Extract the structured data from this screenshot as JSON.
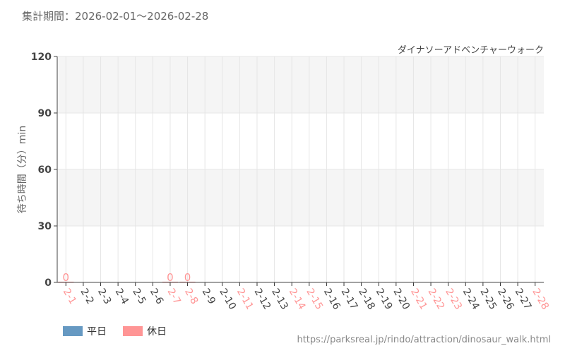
{
  "header": {
    "period_label": "集計期間：2026-02-01～2026-02-28",
    "attraction": "ダイナソーアドベンチャーウォーク"
  },
  "footer": {
    "url": "https://parksreal.jp/rindo/attraction/dinosaur_walk.html"
  },
  "colors": {
    "weekday": "#6699c2",
    "holiday": "#ff9595",
    "axis_text": "#444444"
  },
  "chart_data": {
    "type": "bar",
    "ylabel": "待ち時間（分）min",
    "ylim": [
      0,
      120
    ],
    "yticks": [
      0,
      30,
      60,
      90,
      120
    ],
    "grid": true,
    "legend_position": "bottom-left",
    "categories": [
      "2-1",
      "2-2",
      "2-3",
      "2-4",
      "2-5",
      "2-6",
      "2-7",
      "2-8",
      "2-9",
      "2-10",
      "2-11",
      "2-12",
      "2-13",
      "2-14",
      "2-15",
      "2-16",
      "2-17",
      "2-18",
      "2-19",
      "2-20",
      "2-21",
      "2-22",
      "2-23",
      "2-24",
      "2-25",
      "2-26",
      "2-27",
      "2-28"
    ],
    "holidays": [
      "2-1",
      "2-7",
      "2-8",
      "2-11",
      "2-14",
      "2-15",
      "2-21",
      "2-22",
      "2-23",
      "2-28"
    ],
    "series": [
      {
        "name": "平日",
        "values": [
          null,
          null,
          null,
          null,
          null,
          null,
          null,
          null,
          null,
          null,
          null,
          null,
          null,
          null,
          null,
          null,
          null,
          null,
          null,
          null,
          null,
          null,
          null,
          null,
          null,
          null,
          null,
          null
        ]
      },
      {
        "name": "休日",
        "values": [
          0,
          null,
          null,
          null,
          null,
          null,
          0,
          0,
          null,
          null,
          null,
          null,
          null,
          null,
          null,
          null,
          null,
          null,
          null,
          null,
          null,
          null,
          null,
          null,
          null,
          null,
          null,
          null
        ]
      }
    ]
  }
}
